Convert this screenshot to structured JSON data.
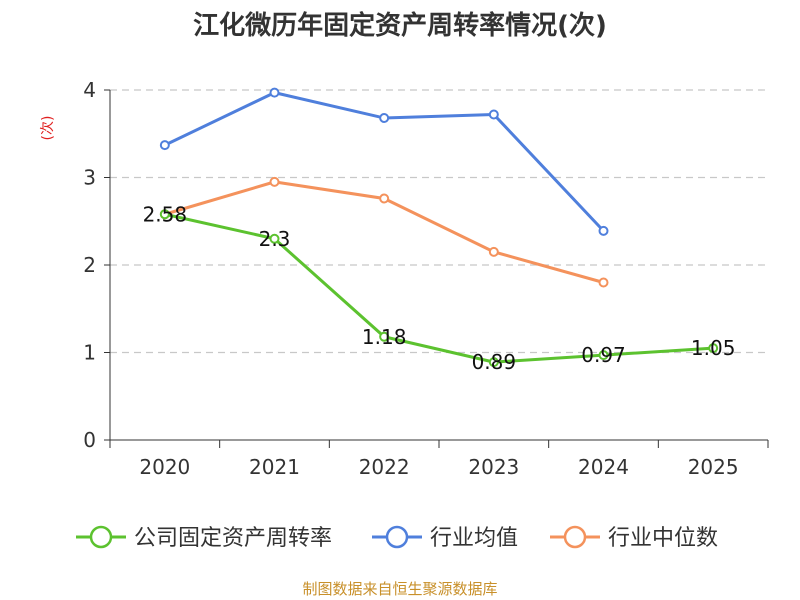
{
  "chart_data": {
    "type": "line",
    "title": "江化微历年固定资产周转率情况(次)",
    "ylabel": "(次)",
    "xlabel": "",
    "categories": [
      "2020",
      "2021",
      "2022",
      "2023",
      "2024",
      "2025"
    ],
    "ylim": [
      0,
      4
    ],
    "yticks": [
      0,
      1,
      2,
      3,
      4
    ],
    "grid": true,
    "legend_position": "bottom",
    "series": [
      {
        "name": "公司固定资产周转率",
        "color": "#5cc22f",
        "values": [
          2.58,
          2.3,
          1.18,
          0.89,
          0.97,
          1.05
        ],
        "labels": [
          "2.58",
          "2.3",
          "1.18",
          "0.89",
          "0.97",
          "1.05"
        ]
      },
      {
        "name": "行业均值",
        "color": "#4f7fdc",
        "values": [
          3.37,
          3.97,
          3.68,
          3.72,
          2.39,
          null
        ]
      },
      {
        "name": "行业中位数",
        "color": "#f4925c",
        "values": [
          2.58,
          2.95,
          2.76,
          2.15,
          1.8,
          null
        ]
      }
    ]
  },
  "footer": "制图数据来自恒生聚源数据库"
}
